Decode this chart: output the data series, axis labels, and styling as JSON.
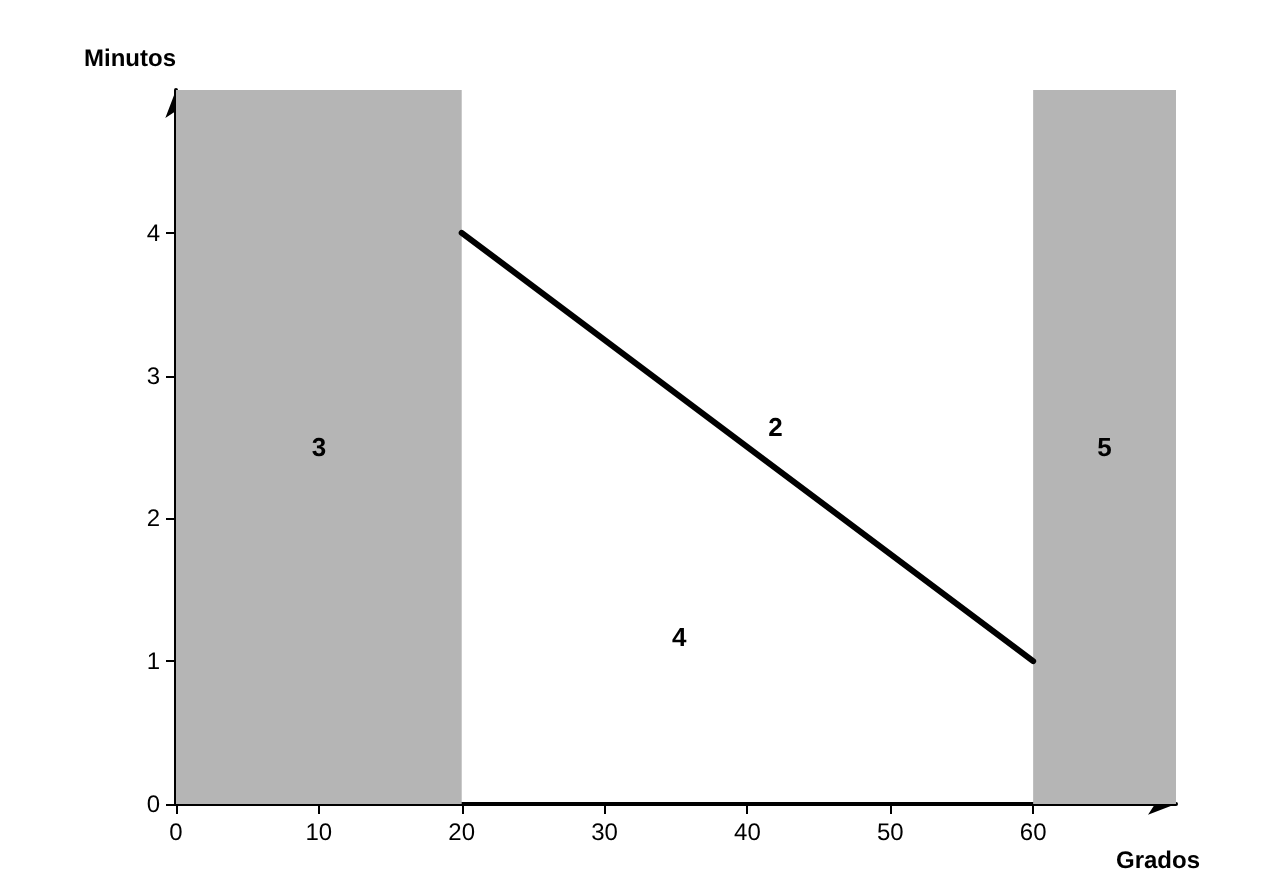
{
  "chart_data": {
    "type": "line",
    "xlabel": "Grados",
    "ylabel": "Minutos",
    "series": [
      {
        "name": "2",
        "color": "#000000",
        "x": [
          20,
          60
        ],
        "values": [
          4,
          1
        ]
      }
    ],
    "bands": [
      {
        "axis": "x",
        "from": 0,
        "to": 20,
        "label": "3",
        "color": "#b5b5b5"
      },
      {
        "axis": "x",
        "from": 60,
        "to": 70,
        "label": "5",
        "color": "#b5b5b5"
      }
    ],
    "annotations": [
      "4"
    ],
    "xlim": [
      0,
      70
    ],
    "ylim": [
      0,
      5
    ],
    "xticks": [
      0,
      10,
      20,
      30,
      40,
      50,
      60
    ],
    "yticks": [
      0,
      1,
      2,
      3,
      4
    ],
    "grid": false,
    "legend": false,
    "marker": "none",
    "line_style": "solid"
  }
}
